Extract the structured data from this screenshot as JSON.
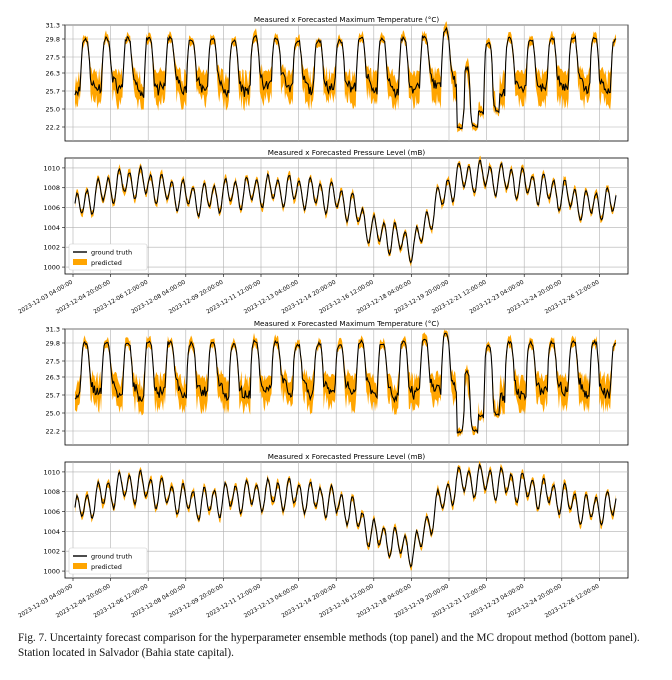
{
  "chart_data": [
    {
      "type": "line",
      "panel": "top",
      "title": "Measured x Forecasted Maximum Temperature (°C)",
      "yticks": [
        "31.3",
        "29.8",
        "27.5",
        "26.3",
        "25.7",
        "25.0",
        "22.2"
      ],
      "series": [
        {
          "name": "ground truth",
          "color": "#000000"
        },
        {
          "name": "predicted",
          "color": "#ffa500"
        }
      ],
      "peaks": [
        29.8,
        29.9,
        29.9,
        30.0,
        29.9,
        29.8,
        29.9,
        29.6,
        30.1,
        29.9,
        29.5,
        29.7,
        29.6,
        30.0,
        29.8,
        29.9,
        30.2,
        30.9,
        26.7,
        29.4,
        29.9,
        29.8,
        29.9,
        30.0,
        29.9,
        29.8,
        29.9
      ],
      "troughs": [
        25.5,
        25.6,
        25.5,
        25.3,
        25.6,
        25.5,
        25.6,
        25.4,
        25.5,
        25.7,
        25.6,
        25.5,
        25.6,
        25.6,
        25.5,
        25.4,
        25.6,
        25.6,
        21.8,
        24.3,
        25.4,
        25.5,
        25.6,
        25.6,
        25.5,
        25.5,
        25.6
      ],
      "grid": true
    },
    {
      "type": "line",
      "panel": "top",
      "title": "Measured x Forecasted Pressure Level (mB)",
      "yticks": [
        "1010",
        "1008",
        "1006",
        "1004",
        "1002",
        "1000"
      ],
      "ylim": [
        999.3,
        1011
      ],
      "xticklabels": [
        "2023-12-03 04:00:00",
        "2023-12-04 20:00:00",
        "2023-12-06 12:00:00",
        "2023-12-08 04:00:00",
        "2023-12-09 20:00:00",
        "2023-12-11 12:00:00",
        "2023-12-13 04:00:00",
        "2023-12-14 20:00:00",
        "2023-12-16 12:00:00",
        "2023-12-18 04:00:00",
        "2023-12-19 20:00:00",
        "2023-12-21 12:00:00",
        "2023-12-23 04:00:00",
        "2023-12-24 20:00:00",
        "2023-12-26 12:00:00"
      ],
      "legend": {
        "position": "lower-left",
        "entries": [
          "ground truth",
          "predicted"
        ]
      },
      "daily_mean": [
        1005.8,
        1007.3,
        1008.3,
        1008.6,
        1007.9,
        1007.3,
        1006.8,
        1007.3,
        1007.6,
        1007.7,
        1007.8,
        1007.5,
        1007.1,
        1006.2,
        1003.7,
        1003.0,
        1002.0,
        1006.3,
        1008.9,
        1009.2,
        1008.9,
        1008.5,
        1007.9,
        1007.4,
        1006.2,
        1006.5
      ],
      "grid": true
    },
    {
      "type": "line",
      "panel": "bottom",
      "title": "Measured x Forecasted Maximum Temperature (°C)",
      "yticks": [
        "31.3",
        "29.8",
        "27.5",
        "26.3",
        "25.7",
        "25.0",
        "22.2"
      ],
      "series": [
        {
          "name": "ground truth",
          "color": "#000000"
        },
        {
          "name": "predicted",
          "color": "#ffa500"
        }
      ],
      "grid": true
    },
    {
      "type": "line",
      "panel": "bottom",
      "title": "Measured x Forecasted Pressure Level (mB)",
      "yticks": [
        "1010",
        "1008",
        "1006",
        "1004",
        "1002",
        "1000"
      ],
      "ylim": [
        999.3,
        1011
      ],
      "xticklabels": [
        "2023-12-03 04:00:00",
        "2023-12-04 20:00:00",
        "2023-12-06 12:00:00",
        "2023-12-08 04:00:00",
        "2023-12-09 20:00:00",
        "2023-12-11 12:00:00",
        "2023-12-13 04:00:00",
        "2023-12-14 20:00:00",
        "2023-12-16 12:00:00",
        "2023-12-18 04:00:00",
        "2023-12-19 20:00:00",
        "2023-12-21 12:00:00",
        "2023-12-23 04:00:00",
        "2023-12-24 20:00:00",
        "2023-12-26 12:00:00"
      ],
      "legend": {
        "position": "lower-left",
        "entries": [
          "ground truth",
          "predicted"
        ]
      },
      "grid": true
    }
  ],
  "caption": {
    "label": "Fig. 7.",
    "text": "Uncertainty forecast comparison for the hyperparameter ensemble methods (top panel) and the MC dropout method (bottom panel). Station located in Salvador (Bahia state capital)."
  },
  "colors": {
    "truth": "#000000",
    "predicted": "#ffa500",
    "grid": "#b0b0b0"
  }
}
